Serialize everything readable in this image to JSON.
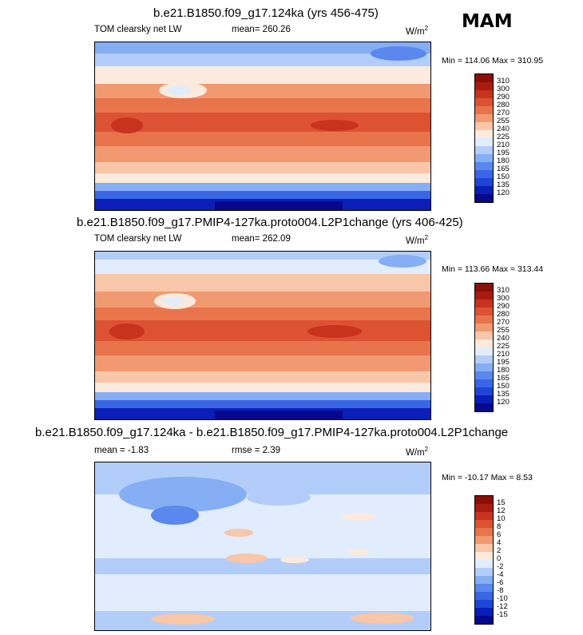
{
  "season": "MAM",
  "units_base": "W/m",
  "units_exp": "2",
  "panels": [
    {
      "title": "b.e21.B1850.f09_g17.124ka (yrs 456-475)",
      "variable": "TOM clearsky net LW",
      "mean": "mean= 260.26",
      "minmax": "Min = 114.06 Max = 310.95"
    },
    {
      "title": "b.e21.B1850.f09_g17.PMIP4-127ka.proto004.L2P1change (yrs 406-425)",
      "variable": "TOM clearsky net LW",
      "mean": "mean= 262.09",
      "minmax": "Min = 113.66 Max = 313.44"
    },
    {
      "title": "b.e21.B1850.f09_g17.124ka - b.e21.B1850.f09_g17.PMIP4-127ka.proto004.L2P1change",
      "mean": "mean =  -1.83",
      "rmse": "rmse =  2.39",
      "minmax": "Min = -10.17 Max =   8.53"
    }
  ],
  "chart_data": [
    {
      "type": "heatmap",
      "title": "b.e21.B1850.f09_g17.124ka (yrs 456-475)",
      "variable": "TOM clearsky net LW",
      "units": "W/m2",
      "mean": 260.26,
      "min": 114.06,
      "max": 310.95,
      "levels": [
        120,
        135,
        150,
        165,
        180,
        195,
        210,
        225,
        240,
        255,
        270,
        280,
        290,
        300,
        310
      ],
      "colors": [
        "#08088c",
        "#0a1fb8",
        "#1f45d8",
        "#3a66e6",
        "#5a88ef",
        "#86aef5",
        "#b2cdfa",
        "#e1ecfd",
        "#fbeadd",
        "#f8c6a8",
        "#f19a72",
        "#e8744c",
        "#dc5232",
        "#c7331e",
        "#a81c10",
        "#8a0f06"
      ]
    },
    {
      "type": "heatmap",
      "title": "b.e21.B1850.f09_g17.PMIP4-127ka.proto004.L2P1change (yrs 406-425)",
      "variable": "TOM clearsky net LW",
      "units": "W/m2",
      "mean": 262.09,
      "min": 113.66,
      "max": 313.44,
      "levels": [
        120,
        135,
        150,
        165,
        180,
        195,
        210,
        225,
        240,
        255,
        270,
        280,
        290,
        300,
        310
      ],
      "colors": [
        "#08088c",
        "#0a1fb8",
        "#1f45d8",
        "#3a66e6",
        "#5a88ef",
        "#86aef5",
        "#b2cdfa",
        "#e1ecfd",
        "#fbeadd",
        "#f8c6a8",
        "#f19a72",
        "#e8744c",
        "#dc5232",
        "#c7331e",
        "#a81c10",
        "#8a0f06"
      ]
    },
    {
      "type": "heatmap",
      "title": "b.e21.B1850.f09_g17.124ka - b.e21.B1850.f09_g17.PMIP4-127ka.proto004.L2P1change",
      "units": "W/m2",
      "mean": -1.83,
      "rmse": 2.39,
      "min": -10.17,
      "max": 8.53,
      "levels": [
        -15,
        -12,
        -10,
        -8,
        -6,
        -4,
        -2,
        0,
        2,
        4,
        6,
        8,
        10,
        12,
        15
      ],
      "colors": [
        "#08088c",
        "#0a1fb8",
        "#1f45d8",
        "#3a66e6",
        "#5a88ef",
        "#86aef5",
        "#b2cdfa",
        "#e1ecfd",
        "#fbeadd",
        "#f8c6a8",
        "#f19a72",
        "#e8744c",
        "#dc5232",
        "#c7331e",
        "#a81c10",
        "#8a0f06"
      ]
    }
  ]
}
